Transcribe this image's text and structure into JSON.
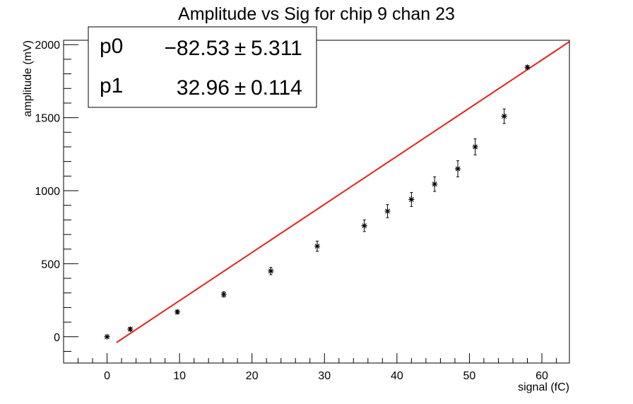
{
  "chart_data": {
    "type": "scatter",
    "title": "Amplitude vs Sig for chip 9 chan 23",
    "xlabel": "signal (fC)",
    "ylabel": "amplitude (mV)",
    "xlim": [
      -6,
      63.8
    ],
    "ylim": [
      -180,
      2030
    ],
    "x_ticks": [
      0,
      10,
      20,
      30,
      40,
      50,
      60
    ],
    "y_ticks": [
      0,
      500,
      1000,
      1500,
      2000
    ],
    "grid": false,
    "legend": "none",
    "series": [
      {
        "marker": "asterisk",
        "color": "#000000",
        "points": [
          {
            "x": 0,
            "y": 0,
            "err": 0
          },
          {
            "x": 3.2,
            "y": 52,
            "err": 10
          },
          {
            "x": 9.7,
            "y": 170,
            "err": 12
          },
          {
            "x": 16.1,
            "y": 290,
            "err": 18
          },
          {
            "x": 22.6,
            "y": 450,
            "err": 25
          },
          {
            "x": 29.0,
            "y": 620,
            "err": 35
          },
          {
            "x": 35.5,
            "y": 760,
            "err": 40
          },
          {
            "x": 38.7,
            "y": 860,
            "err": 45
          },
          {
            "x": 42.0,
            "y": 940,
            "err": 48
          },
          {
            "x": 45.2,
            "y": 1045,
            "err": 50
          },
          {
            "x": 48.4,
            "y": 1150,
            "err": 55
          },
          {
            "x": 50.8,
            "y": 1300,
            "err": 55
          },
          {
            "x": 54.8,
            "y": 1510,
            "err": 50
          },
          {
            "x": 58.0,
            "y": 1845,
            "err": 10
          }
        ]
      }
    ],
    "fit": {
      "type": "line",
      "color": "#e8221b",
      "p0": -82.53,
      "p1": 32.96,
      "x_range": [
        1.3,
        63.8
      ]
    },
    "stats_box": {
      "rows": [
        {
          "name": "p0",
          "value": "−82.53",
          "pm": "±",
          "error": "5.311"
        },
        {
          "name": "p1",
          "value": "32.96",
          "pm": "±",
          "error": "0.114"
        }
      ]
    }
  }
}
